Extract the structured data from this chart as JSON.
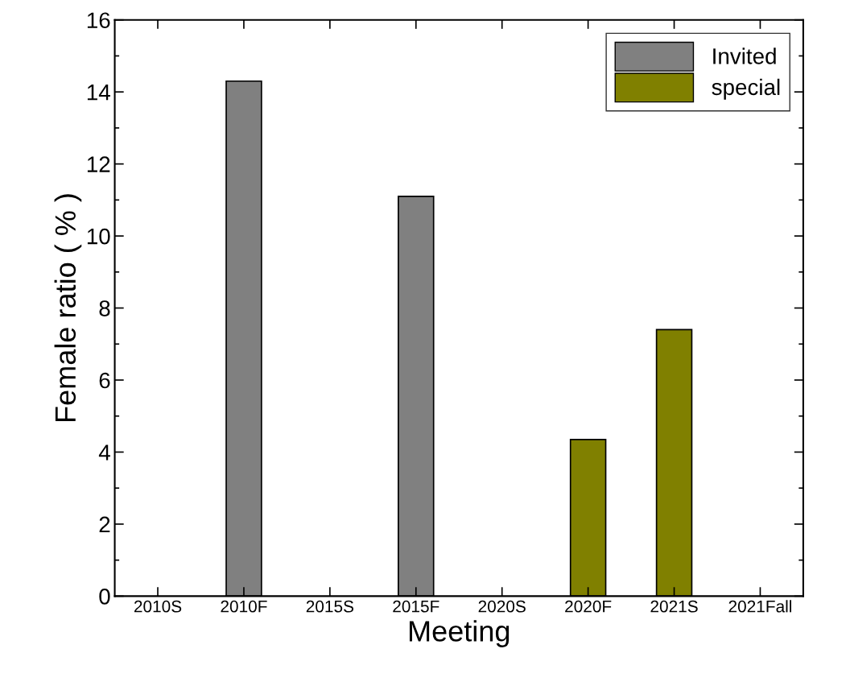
{
  "chart_data": {
    "type": "bar",
    "xlabel": "Meeting",
    "ylabel": "Female ratio ( % )",
    "categories": [
      "2010S",
      "2010F",
      "2015S",
      "2015F",
      "2020S",
      "2020F",
      "2021S",
      "2021Fall"
    ],
    "series": [
      {
        "name": "Invited",
        "color": "#808080",
        "values": [
          null,
          14.3,
          null,
          11.1,
          null,
          null,
          null,
          null
        ]
      },
      {
        "name": "special",
        "color": "#808000",
        "values": [
          null,
          null,
          null,
          null,
          null,
          4.35,
          7.4,
          null
        ]
      }
    ],
    "ylim": [
      0,
      16
    ],
    "yticks": [
      0,
      2,
      4,
      6,
      8,
      10,
      12,
      14,
      16
    ],
    "grid": false,
    "legend": "top right"
  }
}
